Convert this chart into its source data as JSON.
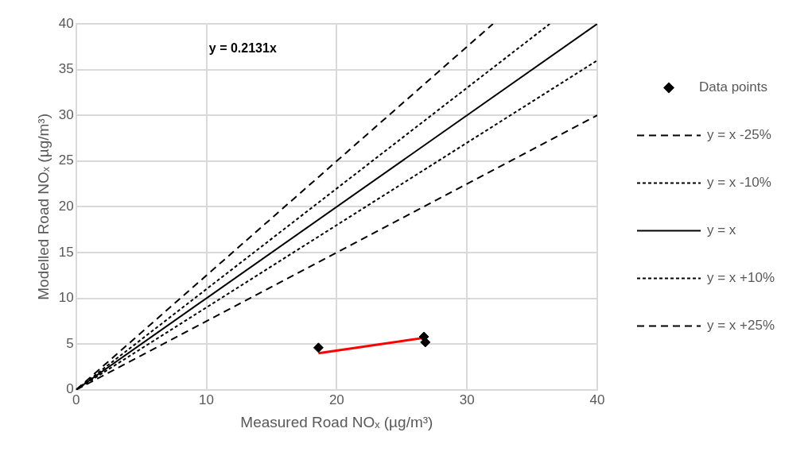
{
  "chart_data": {
    "type": "scatter",
    "xlabel": "Measured Road NOₓ (µg/m³)",
    "ylabel": "Modelled Road NOₓ (µg/m³)",
    "annotations": [
      "y = 0.2131x"
    ],
    "xlim": [
      0,
      40
    ],
    "xticks": [
      0,
      10,
      20,
      30,
      40
    ],
    "ylim": [
      0,
      40
    ],
    "yticks": [
      0,
      5,
      10,
      15,
      20,
      25,
      30,
      35,
      40
    ],
    "grid": true,
    "legend": "right",
    "marker": "diamond",
    "series": [
      {
        "name": "Data points",
        "type": "scatter",
        "color": "#000000",
        "x": [
          18.6,
          26.7,
          26.8
        ],
        "values": [
          4.6,
          5.8,
          5.2
        ]
      },
      {
        "name": "y = x -25%",
        "type": "line",
        "color": "#000000",
        "line_style": "dashed",
        "marker": "none",
        "x": [
          0,
          40
        ],
        "values": [
          0,
          30
        ]
      },
      {
        "name": "y = x -10%",
        "type": "line",
        "color": "#000000",
        "line_style": "dotted",
        "marker": "none",
        "x": [
          0,
          40
        ],
        "values": [
          0,
          36
        ]
      },
      {
        "name": "y = x",
        "type": "line",
        "color": "#000000",
        "line_style": "solid",
        "marker": "none",
        "x": [
          0,
          40
        ],
        "values": [
          0,
          40
        ]
      },
      {
        "name": "y = x +10%",
        "type": "line",
        "color": "#000000",
        "line_style": "dotted",
        "marker": "none",
        "x": [
          0,
          36.36
        ],
        "values": [
          0,
          40
        ]
      },
      {
        "name": "y = x +25%",
        "type": "line",
        "color": "#000000",
        "line_style": "dashed",
        "marker": "none",
        "x": [
          0,
          32
        ],
        "values": [
          0,
          40
        ]
      },
      {
        "type": "line",
        "color": "#ff0000",
        "line_style": "solid",
        "marker": "none",
        "x": [
          18.6,
          26.8
        ],
        "values": [
          4.0,
          5.7
        ]
      }
    ]
  }
}
